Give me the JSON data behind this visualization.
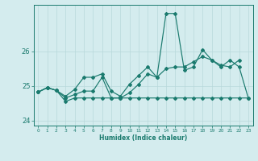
{
  "xlabel": "Humidex (Indice chaleur)",
  "background_color": "#d4ecee",
  "grid_color": "#b8d8db",
  "line_color": "#1a7a6e",
  "xlim": [
    -0.5,
    23.5
  ],
  "ylim": [
    23.85,
    27.35
  ],
  "xticks": [
    0,
    1,
    2,
    3,
    4,
    5,
    6,
    7,
    8,
    9,
    10,
    11,
    12,
    13,
    14,
    15,
    16,
    17,
    18,
    19,
    20,
    21,
    22,
    23
  ],
  "yticks": [
    24,
    25,
    26
  ],
  "line1_x": [
    0,
    1,
    2,
    3,
    4,
    5,
    6,
    7,
    8,
    9,
    10,
    11,
    12,
    13,
    14,
    15,
    16,
    17,
    18,
    19,
    20,
    21,
    22,
    23
  ],
  "line1_y": [
    24.82,
    24.95,
    24.87,
    24.7,
    24.9,
    25.25,
    25.25,
    25.35,
    24.85,
    24.7,
    25.05,
    25.3,
    25.55,
    25.25,
    27.1,
    27.1,
    25.45,
    25.55,
    26.05,
    25.75,
    25.55,
    25.75,
    25.55,
    24.65
  ],
  "line2_x": [
    0,
    1,
    2,
    3,
    4,
    5,
    6,
    7,
    8,
    9,
    10,
    11,
    12,
    13,
    14,
    15,
    16,
    17,
    18,
    19,
    20,
    21,
    22
  ],
  "line2_y": [
    24.82,
    24.95,
    24.87,
    24.65,
    24.75,
    24.85,
    24.85,
    25.25,
    24.65,
    24.65,
    24.8,
    25.05,
    25.35,
    25.25,
    25.5,
    25.55,
    25.55,
    25.7,
    25.85,
    25.75,
    25.6,
    25.55,
    25.75
  ],
  "line3_x": [
    0,
    1,
    2,
    3,
    4,
    5,
    6,
    7,
    8,
    9,
    10,
    11,
    12,
    13,
    14,
    15,
    16,
    17,
    18,
    19,
    20,
    21,
    22,
    23
  ],
  "line3_y": [
    24.82,
    24.95,
    24.87,
    24.55,
    24.65,
    24.65,
    24.65,
    24.65,
    24.65,
    24.65,
    24.65,
    24.65,
    24.65,
    24.65,
    24.65,
    24.65,
    24.65,
    24.65,
    24.65,
    24.65,
    24.65,
    24.65,
    24.65,
    24.65
  ]
}
